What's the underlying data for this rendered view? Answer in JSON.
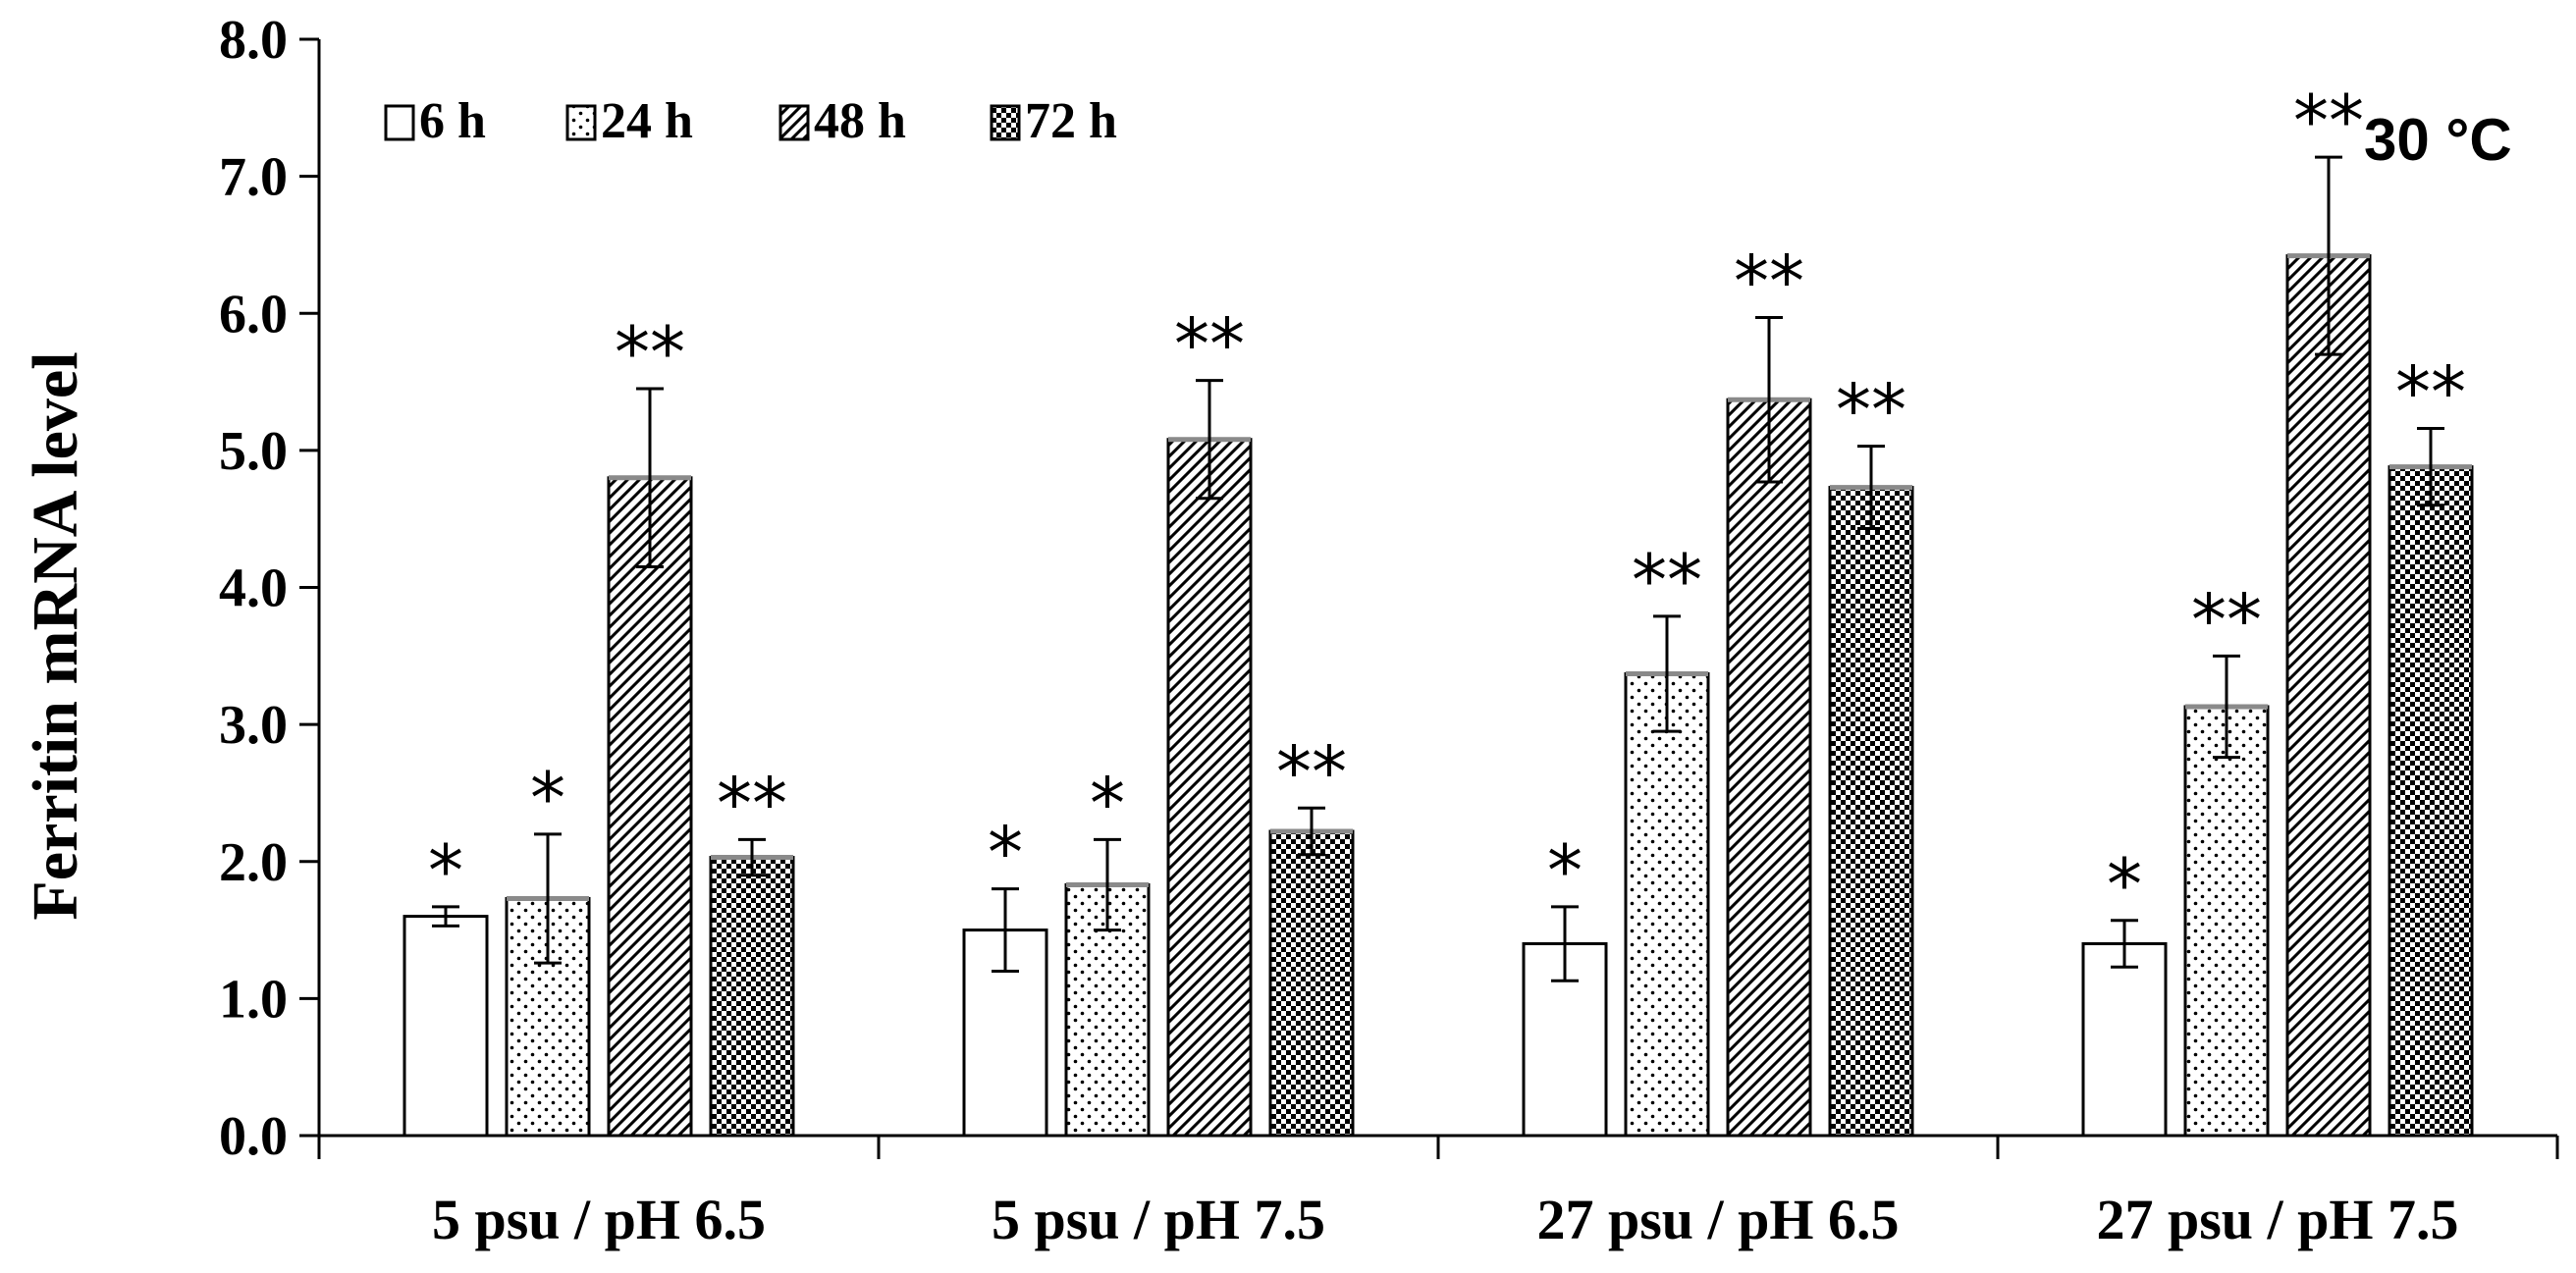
{
  "chart_data": {
    "type": "bar",
    "title": "",
    "xlabel": "",
    "ylabel": "Ferritin  mRNA  level",
    "ylim": [
      0,
      8
    ],
    "yticks": [
      "0.0",
      "1.0",
      "2.0",
      "3.0",
      "4.0",
      "5.0",
      "6.0",
      "7.0",
      "8.0"
    ],
    "categories": [
      "5 psu / pH 6.5",
      "5 psu / pH 7.5",
      "27 psu / pH 6.5",
      "27 psu / pH 7.5"
    ],
    "series": [
      {
        "name": "6 h",
        "pattern": "empty",
        "values": [
          1.6,
          1.5,
          1.4,
          1.4
        ],
        "errors": [
          0.07,
          0.3,
          0.27,
          0.17
        ],
        "significance": [
          "*",
          "*",
          "*",
          "*"
        ]
      },
      {
        "name": "24 h",
        "pattern": "dots",
        "values": [
          1.73,
          1.83,
          3.37,
          3.13
        ],
        "errors": [
          0.47,
          0.33,
          0.42,
          0.37
        ],
        "significance": [
          "*",
          "*",
          "**",
          "**"
        ]
      },
      {
        "name": "48 h",
        "pattern": "diagonal",
        "values": [
          4.8,
          5.08,
          5.37,
          6.42
        ],
        "errors": [
          0.65,
          0.43,
          0.6,
          0.72
        ],
        "significance": [
          "**",
          "**",
          "**",
          "**"
        ]
      },
      {
        "name": "72 h",
        "pattern": "checker",
        "values": [
          2.03,
          2.22,
          4.73,
          4.88
        ],
        "errors": [
          0.13,
          0.17,
          0.3,
          0.28
        ],
        "significance": [
          "**",
          "**",
          "**",
          "**"
        ]
      }
    ],
    "annotation": "30 °C",
    "legend_position": "top-left",
    "grid": false
  }
}
